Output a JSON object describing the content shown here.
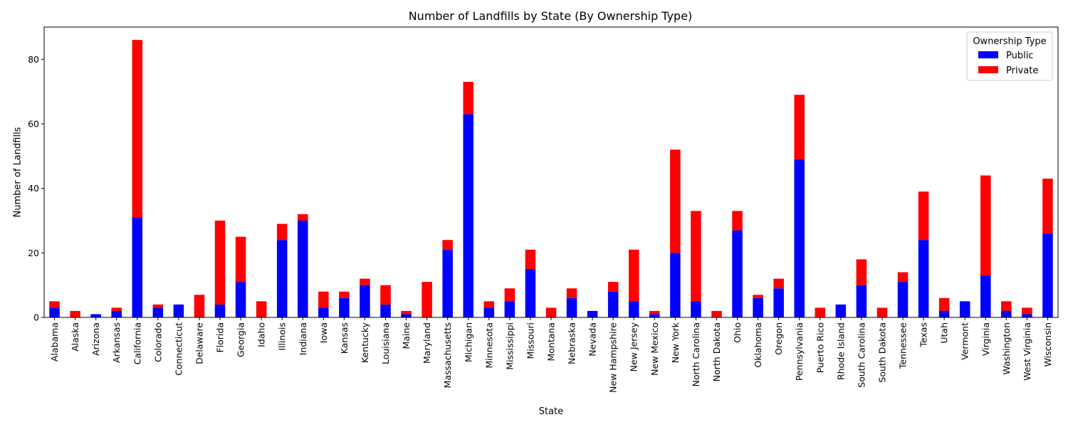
{
  "chart_data": {
    "type": "bar",
    "stacked": true,
    "title": "Number of Landfills by State (By Ownership Type)",
    "xlabel": "State",
    "ylabel": "Number of Landfills",
    "ylim": [
      0,
      90
    ],
    "yticks": [
      0,
      20,
      40,
      60,
      80
    ],
    "grid": false,
    "legend": {
      "title": "Ownership Type",
      "placement": "top-right"
    },
    "categories": [
      "Alabama",
      "Alaska",
      "Arizona",
      "Arkansas",
      "California",
      "Colorado",
      "Connecticut",
      "Delaware",
      "Florida",
      "Georgia",
      "Idaho",
      "Illinois",
      "Indiana",
      "Iowa",
      "Kansas",
      "Kentucky",
      "Louisiana",
      "Maine",
      "Maryland",
      "Massachusetts",
      "Michigan",
      "Minnesota",
      "Mississippi",
      "Missouri",
      "Montana",
      "Nebraska",
      "Nevada",
      "New Hampshire",
      "New Jersey",
      "New Mexico",
      "New York",
      "North Carolina",
      "North Dakota",
      "Ohio",
      "Oklahoma",
      "Oregon",
      "Pennsylvania",
      "Puerto Rico",
      "Rhode Island",
      "South Carolina",
      "South Dakota",
      "Tennessee",
      "Texas",
      "Utah",
      "Vermont",
      "Virginia",
      "Washington",
      "West Virginia",
      "Wisconsin"
    ],
    "series": [
      {
        "name": "Public",
        "color": "#0000ff",
        "values": [
          3,
          0,
          1,
          2,
          31,
          3,
          4,
          0,
          4,
          11,
          0,
          24,
          30,
          3,
          6,
          10,
          4,
          1,
          0,
          21,
          63,
          3,
          5,
          15,
          0,
          6,
          2,
          8,
          5,
          1,
          20,
          5,
          0,
          27,
          6,
          9,
          49,
          0,
          4,
          10,
          0,
          11,
          24,
          2,
          5,
          13,
          2,
          1,
          26
        ]
      },
      {
        "name": "Private",
        "color": "#ff0000",
        "values": [
          2,
          2,
          0,
          1,
          55,
          1,
          0,
          7,
          26,
          14,
          5,
          5,
          2,
          5,
          2,
          2,
          6,
          1,
          11,
          3,
          10,
          2,
          4,
          6,
          3,
          3,
          0,
          3,
          16,
          1,
          32,
          28,
          2,
          6,
          1,
          3,
          20,
          3,
          0,
          8,
          3,
          3,
          15,
          4,
          0,
          31,
          3,
          2,
          17
        ]
      }
    ]
  }
}
